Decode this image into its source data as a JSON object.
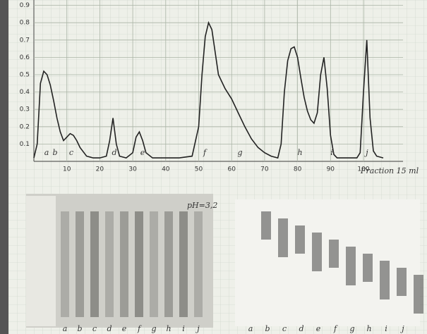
{
  "chart_data": {
    "type": "line",
    "xlabel": "Fraction 15 ml",
    "x": [
      0,
      1,
      2,
      3,
      4,
      5,
      6,
      7,
      8,
      9,
      10,
      11,
      12,
      13,
      14,
      16,
      18,
      20,
      22,
      23,
      24,
      25,
      26,
      28,
      30,
      31,
      32,
      33,
      34,
      36,
      40,
      44,
      48,
      50,
      51,
      52,
      53,
      54,
      56,
      58,
      60,
      62,
      64,
      66,
      68,
      70,
      72,
      74,
      75,
      76,
      77,
      78,
      79,
      80,
      81,
      82,
      83,
      84,
      85,
      86,
      87,
      88,
      89,
      90,
      91,
      92,
      94,
      96,
      98,
      99,
      100,
      101,
      102,
      103,
      104,
      106
    ],
    "values": [
      0.02,
      0.1,
      0.45,
      0.52,
      0.5,
      0.44,
      0.35,
      0.25,
      0.17,
      0.12,
      0.14,
      0.16,
      0.15,
      0.12,
      0.08,
      0.03,
      0.02,
      0.02,
      0.03,
      0.12,
      0.25,
      0.1,
      0.03,
      0.02,
      0.05,
      0.14,
      0.17,
      0.12,
      0.05,
      0.02,
      0.02,
      0.02,
      0.03,
      0.2,
      0.5,
      0.72,
      0.8,
      0.76,
      0.5,
      0.42,
      0.36,
      0.28,
      0.2,
      0.13,
      0.08,
      0.05,
      0.03,
      0.02,
      0.1,
      0.4,
      0.58,
      0.65,
      0.66,
      0.6,
      0.48,
      0.37,
      0.29,
      0.24,
      0.22,
      0.28,
      0.5,
      0.6,
      0.42,
      0.15,
      0.04,
      0.02,
      0.02,
      0.02,
      0.02,
      0.05,
      0.4,
      0.7,
      0.25,
      0.06,
      0.03,
      0.02
    ],
    "color": "#222222",
    "xlim": [
      0,
      112
    ],
    "ylim": [
      0,
      0.95
    ],
    "xticks": [
      10,
      20,
      30,
      40,
      50,
      60,
      70,
      80,
      90,
      100
    ],
    "yticks": [
      0.1,
      0.2,
      0.3,
      0.4,
      0.5,
      0.6,
      0.7,
      0.8,
      0.9
    ],
    "grid": true,
    "fraction_labels": [
      "a",
      "b",
      "c",
      "d",
      "e",
      "f",
      "g",
      "h",
      "i",
      "j"
    ]
  },
  "gels": [
    {
      "title": "pH=3,2",
      "lanes": [
        "a",
        "b",
        "c",
        "d",
        "e",
        "f",
        "g",
        "h",
        "i",
        "j"
      ]
    },
    {
      "lanes": [
        "a",
        "b",
        "c",
        "d",
        "e",
        "f",
        "g",
        "h",
        "i",
        "j"
      ]
    }
  ]
}
